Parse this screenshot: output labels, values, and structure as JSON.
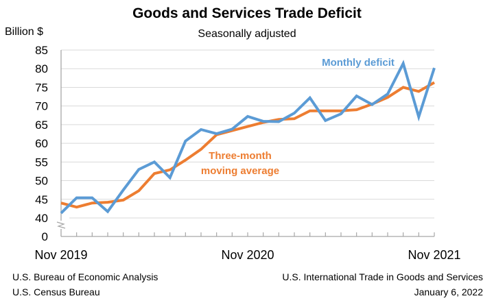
{
  "chart_data": {
    "type": "line",
    "title": "Goods and Services Trade Deficit",
    "subtitle": "Seasonally adjusted",
    "ylabel": "Billion $",
    "xlabel": "",
    "ylim": [
      40,
      85
    ],
    "y_break": true,
    "y_ticks": [
      85,
      80,
      75,
      70,
      65,
      60,
      55,
      50,
      45,
      40,
      0
    ],
    "grid": true,
    "x": [
      "Nov 2019",
      "Dec 2019",
      "Jan 2020",
      "Feb 2020",
      "Mar 2020",
      "Apr 2020",
      "May 2020",
      "Jun 2020",
      "Jul 2020",
      "Aug 2020",
      "Sep 2020",
      "Oct 2020",
      "Nov 2020",
      "Dec 2020",
      "Jan 2021",
      "Feb 2021",
      "Mar 2021",
      "Apr 2021",
      "May 2021",
      "Jun 2021",
      "Jul 2021",
      "Aug 2021",
      "Sep 2021",
      "Oct 2021",
      "Nov 2021"
    ],
    "x_tick_labels": [
      {
        "index": 0,
        "label": "Nov 2019"
      },
      {
        "index": 12,
        "label": "Nov 2020"
      },
      {
        "index": 24,
        "label": "Nov 2021"
      }
    ],
    "series": [
      {
        "name": "Monthly deficit",
        "color": "#5b9bd5",
        "values": [
          41.3,
          45.4,
          45.4,
          41.7,
          47.5,
          53.0,
          55.0,
          50.8,
          60.6,
          63.7,
          62.6,
          63.8,
          67.2,
          65.9,
          65.8,
          68.1,
          72.2,
          66.1,
          67.9,
          72.7,
          70.4,
          73.2,
          81.4,
          67.1,
          80.2
        ]
      },
      {
        "name": "Three-month moving average",
        "color": "#ed7d31",
        "values": [
          44.0,
          42.9,
          44.0,
          44.2,
          44.8,
          47.3,
          51.9,
          52.9,
          55.5,
          58.4,
          62.3,
          63.4,
          64.5,
          65.6,
          66.4,
          66.6,
          68.7,
          68.7,
          68.7,
          69.0,
          70.5,
          72.3,
          75.0,
          73.9,
          76.3
        ]
      }
    ],
    "annotations": [
      {
        "text": "Monthly deficit",
        "series": 0
      },
      {
        "text_lines": [
          "Three-month",
          "moving average"
        ],
        "series": 1
      }
    ]
  },
  "footer": {
    "source_line1": "U.S. Bureau of Economic Analysis",
    "source_line2": "U.S. Census Bureau",
    "report_line1": "U.S. International Trade in Goods and Services",
    "report_date": "January 6, 2022"
  }
}
